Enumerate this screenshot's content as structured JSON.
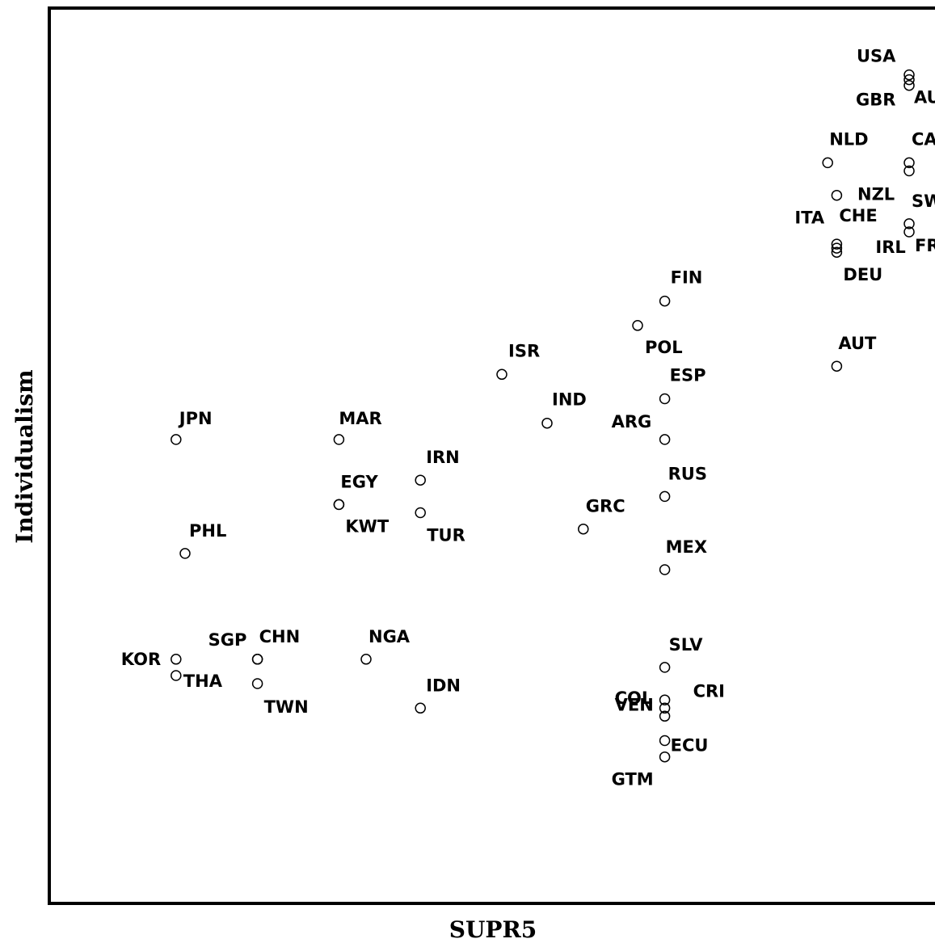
{
  "chart_data": {
    "type": "scatter",
    "title": "",
    "xlabel": "SUPR5",
    "ylabel": "Individualism",
    "xlim": [
      -0.5,
      9.5
    ],
    "ylim": [
      -0.5,
      10.5
    ],
    "grid": false,
    "legend": "none",
    "axis_color": "#000000",
    "point_style": "hollow circle",
    "points": [
      {
        "label": "USA",
        "x": 9.0,
        "y": 9.68,
        "lx": -65,
        "ly": -16
      },
      {
        "label": "AUS",
        "x": 9.0,
        "y": 9.55,
        "lx": 6,
        "ly": 22
      },
      {
        "label": "GBR",
        "x": 9.0,
        "y": 9.62,
        "lx": -66,
        "ly": 32
      },
      {
        "label": "CAN",
        "x": 9.0,
        "y": 8.6,
        "lx": 3,
        "ly": -22
      },
      {
        "label": "NLD",
        "x": 8.1,
        "y": 8.6,
        "lx": 2,
        "ly": -22
      },
      {
        "label": "NZL",
        "x": 9.0,
        "y": 8.5,
        "lx": -64,
        "ly": 36
      },
      {
        "label": "ITA",
        "x": 8.2,
        "y": 8.2,
        "lx": -52,
        "ly": 35
      },
      {
        "label": "SWE",
        "x": 9.0,
        "y": 7.85,
        "lx": 3,
        "ly": -21
      },
      {
        "label": "CHE",
        "x": 8.2,
        "y": 7.6,
        "lx": 3,
        "ly": -28
      },
      {
        "label": "FRA",
        "x": 9.0,
        "y": 7.75,
        "lx": 7,
        "ly": 24
      },
      {
        "label": "IRL",
        "x": 8.2,
        "y": 7.55,
        "lx": 48,
        "ly": 6
      },
      {
        "label": "DEU",
        "x": 8.2,
        "y": 7.5,
        "lx": 8,
        "ly": 35
      },
      {
        "label": "FIN",
        "x": 6.3,
        "y": 6.9,
        "lx": 7,
        "ly": -22
      },
      {
        "label": "POL",
        "x": 6.0,
        "y": 6.6,
        "lx": 9,
        "ly": 34
      },
      {
        "label": "AUT",
        "x": 8.2,
        "y": 6.1,
        "lx": 2,
        "ly": -21
      },
      {
        "label": "ISR",
        "x": 4.5,
        "y": 6.0,
        "lx": 8,
        "ly": -22
      },
      {
        "label": "ESP",
        "x": 6.3,
        "y": 5.7,
        "lx": 6,
        "ly": -22
      },
      {
        "label": "IND",
        "x": 5.0,
        "y": 5.4,
        "lx": 6,
        "ly": -22
      },
      {
        "label": "ARG",
        "x": 6.3,
        "y": 5.2,
        "lx": -66,
        "ly": -15
      },
      {
        "label": "JPN",
        "x": 0.9,
        "y": 5.2,
        "lx": 4,
        "ly": -19
      },
      {
        "label": "MAR",
        "x": 2.7,
        "y": 5.2,
        "lx": 0,
        "ly": -19
      },
      {
        "label": "IRN",
        "x": 3.6,
        "y": 4.7,
        "lx": 7,
        "ly": -21
      },
      {
        "label": "EGY",
        "x": 2.7,
        "y": 4.4,
        "lx": 2,
        "ly": -21
      },
      {
        "label": "KWT",
        "x": 2.7,
        "y": 4.4,
        "lx": 8,
        "ly": 34
      },
      {
        "label": "TUR",
        "x": 3.6,
        "y": 4.3,
        "lx": 8,
        "ly": 35
      },
      {
        "label": "RUS",
        "x": 6.3,
        "y": 4.5,
        "lx": 4,
        "ly": -21
      },
      {
        "label": "GRC",
        "x": 5.4,
        "y": 4.1,
        "lx": 3,
        "ly": -21
      },
      {
        "label": "PHL",
        "x": 1.0,
        "y": 3.8,
        "lx": 5,
        "ly": -21
      },
      {
        "label": "MEX",
        "x": 6.3,
        "y": 3.6,
        "lx": 1,
        "ly": -21
      },
      {
        "label": "SGP",
        "x": 1.8,
        "y": 2.5,
        "lx": -61,
        "ly": -17
      },
      {
        "label": "CHN",
        "x": 1.8,
        "y": 2.5,
        "lx": 2,
        "ly": -21
      },
      {
        "label": "NGA",
        "x": 3.0,
        "y": 2.5,
        "lx": 3,
        "ly": -21
      },
      {
        "label": "KOR",
        "x": 0.9,
        "y": 2.5,
        "lx": -68,
        "ly": 7
      },
      {
        "label": "THA",
        "x": 0.9,
        "y": 2.3,
        "lx": 9,
        "ly": 14
      },
      {
        "label": "TWN",
        "x": 1.8,
        "y": 2.2,
        "lx": 8,
        "ly": 36
      },
      {
        "label": "IDN",
        "x": 3.6,
        "y": 1.9,
        "lx": 7,
        "ly": -21
      },
      {
        "label": "SLV",
        "x": 6.3,
        "y": 2.4,
        "lx": 5,
        "ly": -21
      },
      {
        "label": "COL",
        "x": 6.3,
        "y": 2.0,
        "lx": -62,
        "ly": 5
      },
      {
        "label": "CRI",
        "x": 6.3,
        "y": 1.9,
        "lx": 35,
        "ly": -14
      },
      {
        "label": "VEN",
        "x": 6.3,
        "y": 1.8,
        "lx": -62,
        "ly": -7
      },
      {
        "label": "ECU",
        "x": 6.3,
        "y": 1.5,
        "lx": 7,
        "ly": 13
      },
      {
        "label": "GTM",
        "x": 6.3,
        "y": 1.3,
        "lx": -66,
        "ly": 35
      }
    ]
  }
}
